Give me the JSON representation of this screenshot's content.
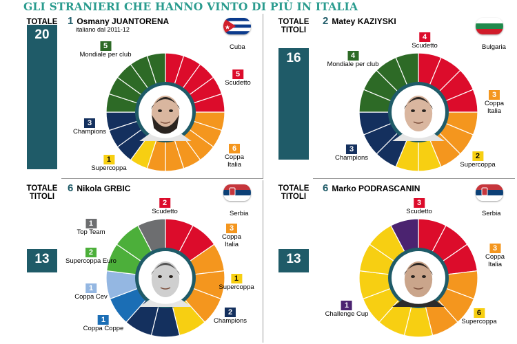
{
  "title": "GLI STRANIERI CHE HANNO VINTO DI PIÙ IN ITALIA",
  "colors": {
    "Scudetto": "#dc0c2b",
    "Coppa Italia": "#f4961e",
    "Supercoppa": "#f7cf12",
    "Champions": "#14305e",
    "Mondiale per club": "#2d6a26",
    "Top Team": "#6d6e70",
    "Supercoppa Euro": "#4caf3a",
    "Coppa Cev": "#94b7e2",
    "Coppa Coppe": "#1b6eb5",
    "Challenge Cup": "#4b2370",
    "total_bar": "#1f5b68"
  },
  "chart_data": [
    {
      "type": "pie",
      "rank": "1",
      "first_name": "Osmany",
      "last_name": "JUANTORENA",
      "subtitle": "italiano dal 2011-12",
      "country": "Cuba",
      "totale_label": "TOTALE TITOLI",
      "total": 20,
      "slices": [
        {
          "name": "Scudetto",
          "value": 5
        },
        {
          "name": "Coppa Italia",
          "value": 6
        },
        {
          "name": "Supercoppa",
          "value": 1
        },
        {
          "name": "Champions",
          "value": 3
        },
        {
          "name": "Mondiale per club",
          "value": 5
        }
      ]
    },
    {
      "type": "pie",
      "rank": "2",
      "first_name": "Matey",
      "last_name": "KAZIYSKI",
      "subtitle": "",
      "country": "Bulgaria",
      "totale_label": "TOTALE TITOLI",
      "total": 16,
      "slices": [
        {
          "name": "Scudetto",
          "value": 4
        },
        {
          "name": "Coppa Italia",
          "value": 3
        },
        {
          "name": "Supercoppa",
          "value": 2
        },
        {
          "name": "Champions",
          "value": 3
        },
        {
          "name": "Mondiale per club",
          "value": 4
        }
      ]
    },
    {
      "type": "pie",
      "rank": "6",
      "first_name": "Nikola",
      "last_name": "GRBIC",
      "subtitle": "",
      "country": "Serbia",
      "totale_label": "TOTALE TITOLI",
      "total": 13,
      "slices": [
        {
          "name": "Scudetto",
          "value": 2
        },
        {
          "name": "Coppa Italia",
          "value": 3
        },
        {
          "name": "Supercoppa",
          "value": 1
        },
        {
          "name": "Champions",
          "value": 2
        },
        {
          "name": "Coppa Coppe",
          "value": 1
        },
        {
          "name": "Coppa Cev",
          "value": 1
        },
        {
          "name": "Supercoppa Euro",
          "value": 2
        },
        {
          "name": "Top Team",
          "value": 1
        }
      ]
    },
    {
      "type": "pie",
      "rank": "6",
      "first_name": "Marko",
      "last_name": "PODRASCANIN",
      "subtitle": "",
      "country": "Serbia",
      "totale_label": "TOTALE TITOLI",
      "total": 13,
      "slices": [
        {
          "name": "Scudetto",
          "value": 3
        },
        {
          "name": "Coppa Italia",
          "value": 3
        },
        {
          "name": "Supercoppa",
          "value": 6
        },
        {
          "name": "Challenge Cup",
          "value": 1
        }
      ]
    }
  ]
}
